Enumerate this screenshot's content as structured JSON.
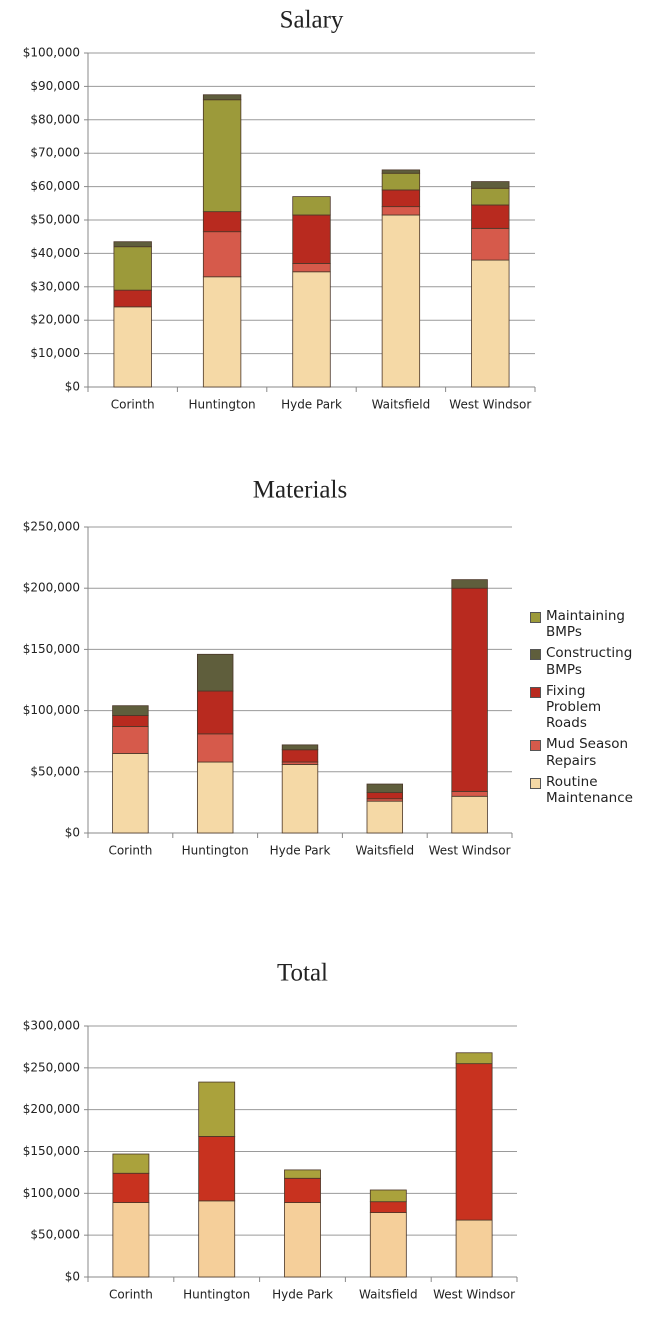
{
  "chart_data": [
    {
      "type": "bar",
      "stacked": true,
      "title": "Salary",
      "categories": [
        "Corinth",
        "Huntington",
        "Hyde Park",
        "Waitsfield",
        "West Windsor"
      ],
      "series": [
        {
          "color": "#f5d9a6",
          "values": [
            24000,
            33000,
            34500,
            51500,
            38000
          ]
        },
        {
          "color": "#d65a4b",
          "values": [
            0,
            13500,
            2500,
            2500,
            9500
          ]
        },
        {
          "color": "#b82a1f",
          "values": [
            5000,
            6000,
            14500,
            5000,
            7000
          ]
        },
        {
          "color": "#9c9a3a",
          "values": [
            13000,
            33500,
            5500,
            5000,
            5000
          ]
        },
        {
          "color": "#5f5e3c",
          "values": [
            1500,
            1500,
            0,
            1000,
            2000
          ]
        }
      ],
      "ylim": [
        0,
        100000
      ],
      "yticks": [
        {
          "value": 0,
          "label": "$0"
        },
        {
          "value": 10000,
          "label": "$10,000"
        },
        {
          "value": 20000,
          "label": "$20,000"
        },
        {
          "value": 30000,
          "label": "$30,000"
        },
        {
          "value": 40000,
          "label": "$40,000"
        },
        {
          "value": 50000,
          "label": "$50,000"
        },
        {
          "value": 60000,
          "label": "$60,000"
        },
        {
          "value": 70000,
          "label": "$70,000"
        },
        {
          "value": 80000,
          "label": "$80,000"
        },
        {
          "value": 90000,
          "label": "$90,000"
        },
        {
          "value": 100000,
          "label": "$100,000"
        }
      ],
      "grid": true
    },
    {
      "type": "bar",
      "stacked": true,
      "title": "Materials",
      "categories": [
        "Corinth",
        "Huntington",
        "Hyde Park",
        "Waitsfield",
        "West Windsor"
      ],
      "series": [
        {
          "name": "Routine Maintenance",
          "color": "#f5d9a6",
          "values": [
            65000,
            58000,
            56000,
            26000,
            30000
          ]
        },
        {
          "name": "Mud Season Repairs",
          "color": "#d65a4b",
          "values": [
            22000,
            23000,
            2000,
            2000,
            4000
          ]
        },
        {
          "name": "Fixing Problem Roads",
          "color": "#b82a1f",
          "values": [
            9000,
            35000,
            10000,
            5000,
            166000
          ]
        },
        {
          "name": "Constructing BMPs",
          "color": "#5f5e3c",
          "values": [
            8000,
            30000,
            4000,
            7000,
            7000
          ]
        },
        {
          "name": "Maintaining BMPs",
          "color": "#9c9a3a",
          "values": [
            0,
            0,
            0,
            0,
            0
          ]
        }
      ],
      "ylim": [
        0,
        250000
      ],
      "yticks": [
        {
          "value": 0,
          "label": "$0"
        },
        {
          "value": 50000,
          "label": "$50,000"
        },
        {
          "value": 100000,
          "label": "$100,000"
        },
        {
          "value": 150000,
          "label": "$150,000"
        },
        {
          "value": 200000,
          "label": "$200,000"
        },
        {
          "value": 250000,
          "label": "$250,000"
        }
      ],
      "grid": true,
      "legend": "right"
    },
    {
      "type": "bar",
      "stacked": true,
      "title": "Total",
      "categories": [
        "Corinth",
        "Huntington",
        "Hyde Park",
        "Waitsfield",
        "West Windsor"
      ],
      "series": [
        {
          "color": "#f5cf9a",
          "values": [
            89000,
            91000,
            89000,
            77000,
            68000
          ]
        },
        {
          "color": "#c8321f",
          "values": [
            35000,
            77000,
            29000,
            13000,
            187000
          ]
        },
        {
          "color": "#aaa23c",
          "values": [
            23000,
            65000,
            10000,
            14000,
            13000
          ]
        }
      ],
      "ylim": [
        0,
        300000
      ],
      "yticks": [
        {
          "value": 0,
          "label": "$0"
        },
        {
          "value": 50000,
          "label": "$50,000"
        },
        {
          "value": 100000,
          "label": "$100,000"
        },
        {
          "value": 150000,
          "label": "$150,000"
        },
        {
          "value": 200000,
          "label": "$200,000"
        },
        {
          "value": 250000,
          "label": "$250,000"
        },
        {
          "value": 300000,
          "label": "$300,000"
        }
      ],
      "grid": true
    }
  ]
}
